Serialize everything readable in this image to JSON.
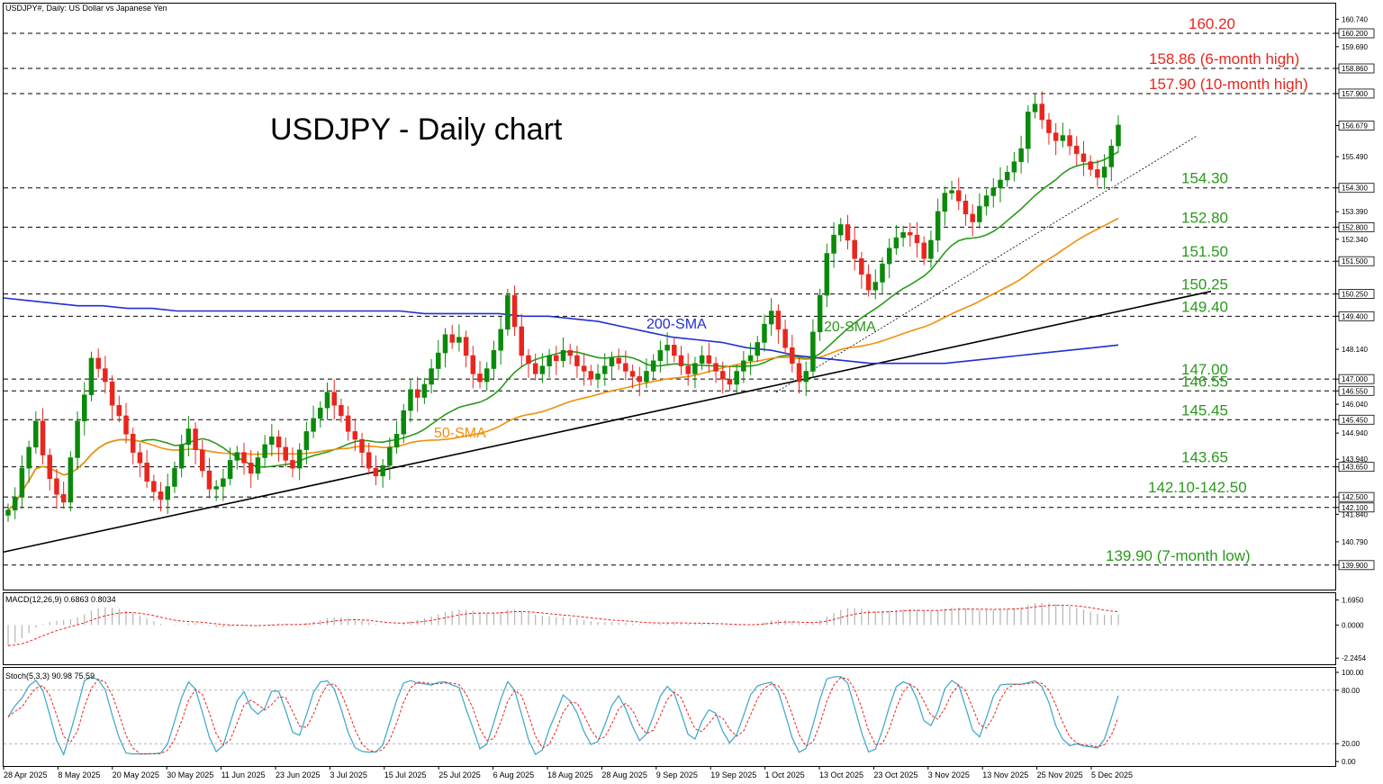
{
  "header": {
    "symbol_line": "USDJPY#, Daily:  US Dollar vs Japanese Yen",
    "chart_title": "USDJPY - Daily chart"
  },
  "chart_data": {
    "type": "candlestick",
    "title": "USDJPY - Daily chart",
    "y_range": [
      139.0,
      161.3
    ],
    "price_ticks": [
      "160.740",
      "160.200",
      "159.690",
      "158.860",
      "157.900",
      "156.679",
      "155.490",
      "154.300",
      "153.390",
      "152.800",
      "152.340",
      "151.500",
      "150.250",
      "149.400",
      "148.140",
      "147.000",
      "146.550",
      "146.040",
      "145.450",
      "144.940",
      "143.940",
      "143.650",
      "142.500",
      "142.100",
      "141.840",
      "140.790",
      "139.900"
    ],
    "current_price": "156.679",
    "x_ticks": [
      "28 Apr 2025",
      "8 May 2025",
      "20 May 2025",
      "30 May 2025",
      "11 Jun 2025",
      "23 Jun 2025",
      "3 Jul 2025",
      "15 Jul 2025",
      "25 Jul 2025",
      "6 Aug 2025",
      "18 Aug 2025",
      "28 Aug 2025",
      "9 Sep 2025",
      "19 Sep 2025",
      "1 Oct 2025",
      "13 Oct 2025",
      "23 Oct 2025",
      "3 Nov 2025",
      "13 Nov 2025",
      "25 Nov 2025",
      "5 Dec 2025"
    ],
    "levels": [
      {
        "value": 160.2,
        "label": "160.20",
        "color": "#e8261e"
      },
      {
        "value": 158.86,
        "label": "158.86 (6-month high)",
        "color": "#e8261e"
      },
      {
        "value": 157.9,
        "label": "157.90 (10-month high)",
        "color": "#e8261e"
      },
      {
        "value": 154.3,
        "label": "154.30",
        "color": "#2a9a1c"
      },
      {
        "value": 152.8,
        "label": "152.80",
        "color": "#2a9a1c"
      },
      {
        "value": 151.5,
        "label": "151.50",
        "color": "#2a9a1c"
      },
      {
        "value": 150.25,
        "label": "150.25",
        "color": "#2a9a1c"
      },
      {
        "value": 149.4,
        "label": "149.40",
        "color": "#2a9a1c"
      },
      {
        "value": 147.0,
        "label": "147.00",
        "color": "#2a9a1c"
      },
      {
        "value": 146.55,
        "label": "146.55",
        "color": "#2a9a1c"
      },
      {
        "value": 145.45,
        "label": "145.45",
        "color": "#2a9a1c"
      },
      {
        "value": 143.65,
        "label": "143.65",
        "color": "#2a9a1c"
      },
      {
        "value": 142.5,
        "label": "142.10-142.50",
        "color": "#2a9a1c"
      },
      {
        "value": 142.1,
        "label": "",
        "color": "#2a9a1c"
      },
      {
        "value": 139.9,
        "label": "139.90 (7-month low)",
        "color": "#2a9a1c"
      }
    ],
    "closes": [
      142.0,
      142.5,
      143.6,
      144.4,
      145.4,
      144.1,
      143.2,
      142.6,
      142.3,
      144.0,
      145.4,
      146.4,
      147.8,
      147.4,
      146.9,
      146.0,
      145.6,
      144.9,
      144.2,
      143.8,
      143.1,
      142.7,
      142.4,
      142.9,
      143.6,
      144.5,
      145.1,
      144.3,
      143.5,
      142.8,
      142.9,
      143.2,
      143.9,
      144.2,
      143.8,
      143.4,
      144.0,
      144.5,
      144.8,
      144.4,
      143.9,
      143.6,
      144.3,
      145.0,
      145.5,
      145.9,
      146.5,
      146.0,
      145.6,
      145.0,
      144.7,
      144.2,
      143.6,
      143.3,
      143.7,
      144.4,
      144.9,
      145.8,
      146.6,
      146.3,
      146.8,
      147.4,
      148.0,
      148.7,
      148.4,
      148.6,
      147.9,
      147.2,
      146.9,
      147.4,
      148.1,
      148.9,
      150.2,
      149.0,
      147.9,
      147.6,
      147.2,
      147.5,
      147.9,
      147.7,
      148.1,
      147.9,
      147.5,
      147.3,
      147.0,
      147.2,
      147.5,
      147.8,
      147.6,
      147.3,
      147.1,
      146.9,
      147.3,
      147.7,
      148.1,
      148.3,
      147.9,
      147.5,
      147.2,
      147.6,
      147.9,
      147.6,
      147.3,
      147.0,
      146.8,
      147.3,
      147.7,
      147.9,
      148.4,
      149.1,
      149.6,
      148.9,
      148.2,
      147.6,
      146.9,
      147.3,
      148.8,
      150.2,
      151.8,
      152.5,
      152.9,
      152.3,
      151.6,
      151.0,
      150.4,
      150.7,
      151.4,
      152.0,
      152.4,
      152.6,
      152.5,
      152.2,
      151.6,
      152.3,
      153.4,
      154.1,
      154.2,
      153.8,
      153.3,
      153.0,
      153.6,
      154.0,
      154.3,
      154.6,
      154.9,
      155.3,
      155.8,
      157.2,
      157.5,
      156.9,
      156.4,
      156.1,
      156.3,
      155.9,
      155.6,
      155.3,
      155.0,
      154.7,
      155.1,
      155.9,
      156.7
    ],
    "indicators": {
      "sma20_label": "20-SMA",
      "sma20_color": "#2a9a1c",
      "sma50_label": "50-SMA",
      "sma50_color": "#f0900a",
      "sma200_label": "200-SMA",
      "sma200_color": "#1f2fd1",
      "sma200": [
        150.1,
        150.0,
        149.9,
        149.8,
        149.8,
        149.7,
        149.7,
        149.6,
        149.6,
        149.6,
        149.6,
        149.6,
        149.6,
        149.6,
        149.6,
        149.6,
        149.6,
        149.5,
        149.5,
        149.5,
        149.5,
        149.4,
        149.4,
        149.3,
        149.2,
        149.0,
        148.8,
        148.6,
        148.5,
        148.4,
        148.2,
        148.1,
        147.9,
        147.8,
        147.7,
        147.6,
        147.6,
        147.6,
        147.6,
        147.7,
        147.8,
        147.9,
        148.0,
        148.1,
        148.2,
        148.3
      ]
    },
    "macd": {
      "label": "MACD(12,26,9) 0.6863 0.8034",
      "ticks": [
        "1.6950",
        "0.0000",
        "-2.2454"
      ],
      "range": [
        -2.6,
        2.1
      ]
    },
    "stoch": {
      "label": "Stoch(5,3,3) 90.98 75.59",
      "ticks": [
        "100.00",
        "80.00",
        "20.00",
        "0.00"
      ],
      "range": [
        -4,
        104
      ]
    }
  }
}
